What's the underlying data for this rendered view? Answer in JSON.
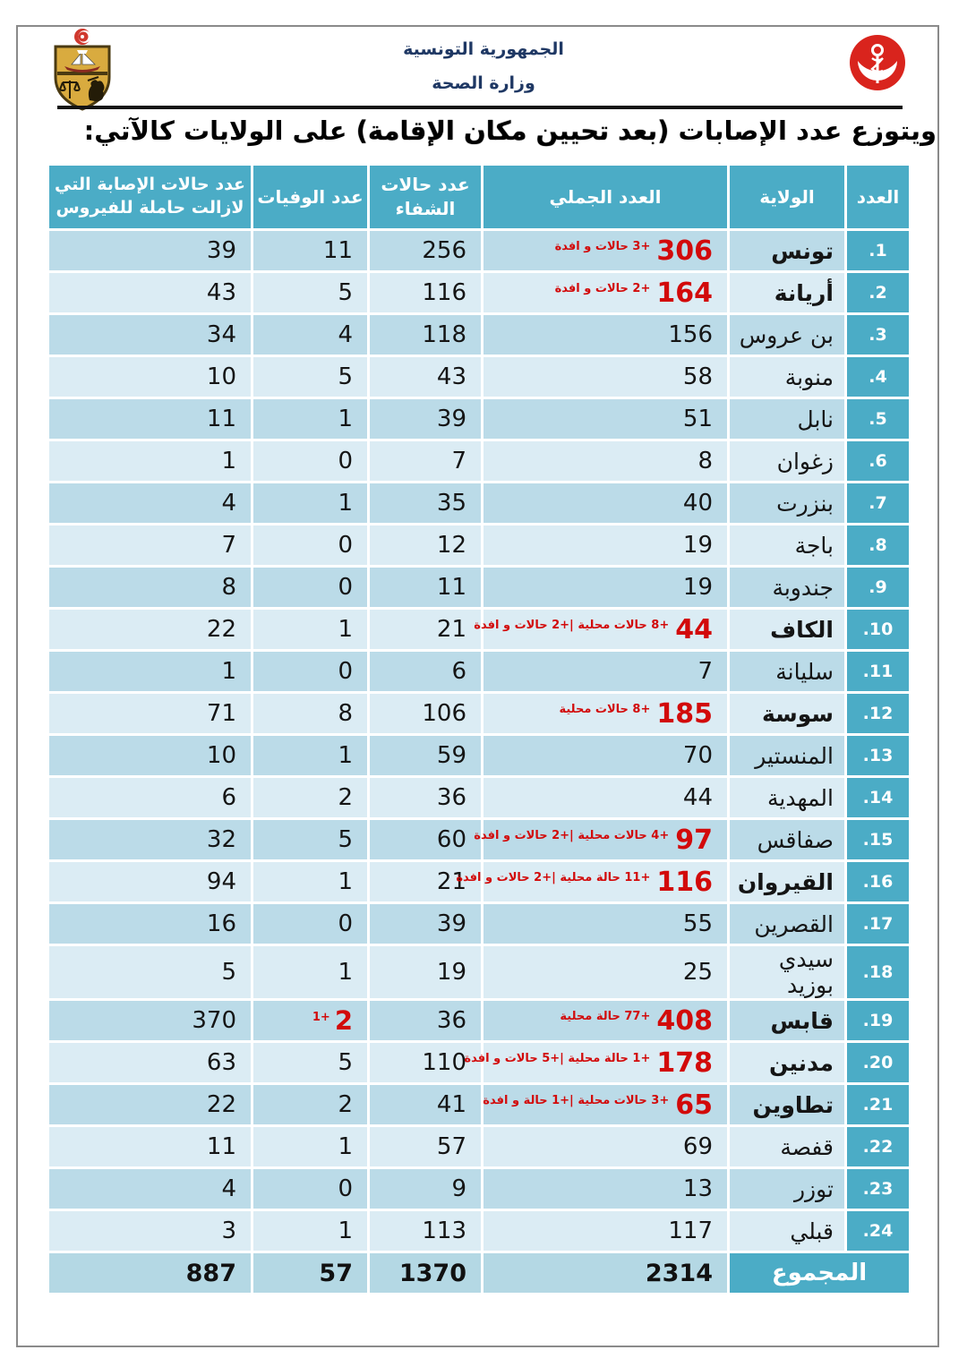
{
  "header": {
    "republic": "الجمهورية التونسية",
    "ministry": "وزارة الصحة"
  },
  "title": {
    "prefix": "ويتوزع عدد الإصابات ",
    "emphasis": "(بعد تحيين مكان الإقامة)",
    "suffix": " على الولايات كالآتي:"
  },
  "icons": {
    "left": "tunisia-coat-of-arms",
    "right": "ministry-of-health-emblem"
  },
  "colors": {
    "accent_teal": "#4BACC6",
    "band_dark": "#BBDBE8",
    "band_light": "#DBECF4",
    "total_band": "#B4D8E4",
    "alert_red": "#d20a0a",
    "navy_text": "#1f3864"
  },
  "table": {
    "headers": {
      "num": "العدد",
      "wilaya": "الولاية",
      "total": "العدد الجملي",
      "recovered": "عدد حالات الشفاء",
      "deaths": "عدد الوفيات",
      "virus": "عدد حالات الإصابة التي لازالت حاملة للفيروس"
    },
    "rows": [
      {
        "num": ".1",
        "wilaya": "تونس",
        "bold": true,
        "total": "306",
        "total_red": true,
        "total_note": "+3 حالات و افدة",
        "recovered": "256",
        "deaths": "11",
        "deaths_red": false,
        "deaths_note": "",
        "virus": "39"
      },
      {
        "num": ".2",
        "wilaya": "أريانة",
        "bold": true,
        "total": "164",
        "total_red": true,
        "total_note": "+2 حالات و افدة",
        "recovered": "116",
        "deaths": "5",
        "deaths_red": false,
        "deaths_note": "",
        "virus": "43"
      },
      {
        "num": ".3",
        "wilaya": "بن عروس",
        "bold": false,
        "total": "156",
        "total_red": false,
        "total_note": "",
        "recovered": "118",
        "deaths": "4",
        "deaths_red": false,
        "deaths_note": "",
        "virus": "34"
      },
      {
        "num": ".4",
        "wilaya": "منوبة",
        "bold": false,
        "total": "58",
        "total_red": false,
        "total_note": "",
        "recovered": "43",
        "deaths": "5",
        "deaths_red": false,
        "deaths_note": "",
        "virus": "10"
      },
      {
        "num": ".5",
        "wilaya": "نابل",
        "bold": false,
        "total": "51",
        "total_red": false,
        "total_note": "",
        "recovered": "39",
        "deaths": "1",
        "deaths_red": false,
        "deaths_note": "",
        "virus": "11"
      },
      {
        "num": ".6",
        "wilaya": "زغوان",
        "bold": false,
        "total": "8",
        "total_red": false,
        "total_note": "",
        "recovered": "7",
        "deaths": "0",
        "deaths_red": false,
        "deaths_note": "",
        "virus": "1"
      },
      {
        "num": ".7",
        "wilaya": "بنزرت",
        "bold": false,
        "total": "40",
        "total_red": false,
        "total_note": "",
        "recovered": "35",
        "deaths": "1",
        "deaths_red": false,
        "deaths_note": "",
        "virus": "4"
      },
      {
        "num": ".8",
        "wilaya": "باجة",
        "bold": false,
        "total": "19",
        "total_red": false,
        "total_note": "",
        "recovered": "12",
        "deaths": "0",
        "deaths_red": false,
        "deaths_note": "",
        "virus": "7"
      },
      {
        "num": ".9",
        "wilaya": "جندوبة",
        "bold": false,
        "total": "19",
        "total_red": false,
        "total_note": "",
        "recovered": "11",
        "deaths": "0",
        "deaths_red": false,
        "deaths_note": "",
        "virus": "8"
      },
      {
        "num": ".10",
        "wilaya": "الكاف",
        "bold": true,
        "total": "44",
        "total_red": true,
        "total_note": "+8 حالات محلية |+2 حالات و افدة",
        "recovered": "21",
        "deaths": "1",
        "deaths_red": false,
        "deaths_note": "",
        "virus": "22"
      },
      {
        "num": ".11",
        "wilaya": "سليانة",
        "bold": false,
        "total": "7",
        "total_red": false,
        "total_note": "",
        "recovered": "6",
        "deaths": "0",
        "deaths_red": false,
        "deaths_note": "",
        "virus": "1"
      },
      {
        "num": ".12",
        "wilaya": "سوسة",
        "bold": true,
        "total": "185",
        "total_red": true,
        "total_note": "+8 حالات محلية",
        "recovered": "106",
        "deaths": "8",
        "deaths_red": false,
        "deaths_note": "",
        "virus": "71"
      },
      {
        "num": ".13",
        "wilaya": "المنستير",
        "bold": false,
        "total": "70",
        "total_red": false,
        "total_note": "",
        "recovered": "59",
        "deaths": "1",
        "deaths_red": false,
        "deaths_note": "",
        "virus": "10"
      },
      {
        "num": ".14",
        "wilaya": "المهدية",
        "bold": false,
        "total": "44",
        "total_red": false,
        "total_note": "",
        "recovered": "36",
        "deaths": "2",
        "deaths_red": false,
        "deaths_note": "",
        "virus": "6"
      },
      {
        "num": ".15",
        "wilaya": "صفاقس",
        "bold": false,
        "total": "97",
        "total_red": true,
        "total_note": "+4 حالات محلية |+2 حالات و افدة",
        "recovered": "60",
        "deaths": "5",
        "deaths_red": false,
        "deaths_note": "",
        "virus": "32"
      },
      {
        "num": ".16",
        "wilaya": "القيروان",
        "bold": true,
        "total": "116",
        "total_red": true,
        "total_note": "+11 حالة محلية |+2 حالات و افدة",
        "recovered": "21",
        "deaths": "1",
        "deaths_red": false,
        "deaths_note": "",
        "virus": "94"
      },
      {
        "num": ".17",
        "wilaya": "القصرين",
        "bold": false,
        "total": "55",
        "total_red": false,
        "total_note": "",
        "recovered": "39",
        "deaths": "0",
        "deaths_red": false,
        "deaths_note": "",
        "virus": "16"
      },
      {
        "num": ".18",
        "wilaya": "سيدي بوزيد",
        "bold": false,
        "total": "25",
        "total_red": false,
        "total_note": "",
        "recovered": "19",
        "deaths": "1",
        "deaths_red": false,
        "deaths_note": "",
        "virus": "5"
      },
      {
        "num": ".19",
        "wilaya": "قابس",
        "bold": true,
        "total": "408",
        "total_red": true,
        "total_note": "+77 حالة محلية",
        "recovered": "36",
        "deaths": "2",
        "deaths_red": true,
        "deaths_note": "1+",
        "virus": "370"
      },
      {
        "num": ".20",
        "wilaya": "مدنين",
        "bold": true,
        "total": "178",
        "total_red": true,
        "total_note": "+1 حالة محلية |+5 حالات و افدة",
        "recovered": "110",
        "deaths": "5",
        "deaths_red": false,
        "deaths_note": "",
        "virus": "63"
      },
      {
        "num": ".21",
        "wilaya": "تطاوين",
        "bold": true,
        "total": "65",
        "total_red": true,
        "total_note": "+3 حالات محلية |+1 حالة و افدة",
        "recovered": "41",
        "deaths": "2",
        "deaths_red": false,
        "deaths_note": "",
        "virus": "22"
      },
      {
        "num": ".22",
        "wilaya": "قفصة",
        "bold": false,
        "total": "69",
        "total_red": false,
        "total_note": "",
        "recovered": "57",
        "deaths": "1",
        "deaths_red": false,
        "deaths_note": "",
        "virus": "11"
      },
      {
        "num": ".23",
        "wilaya": "توزر",
        "bold": false,
        "total": "13",
        "total_red": false,
        "total_note": "",
        "recovered": "9",
        "deaths": "0",
        "deaths_red": false,
        "deaths_note": "",
        "virus": "4"
      },
      {
        "num": ".24",
        "wilaya": "قبلي",
        "bold": false,
        "total": "117",
        "total_red": false,
        "total_note": "",
        "recovered": "113",
        "deaths": "1",
        "deaths_red": false,
        "deaths_note": "",
        "virus": "3"
      }
    ],
    "total": {
      "label": "المجموع",
      "total": "2314",
      "recovered": "1370",
      "deaths": "57",
      "virus": "887"
    }
  }
}
